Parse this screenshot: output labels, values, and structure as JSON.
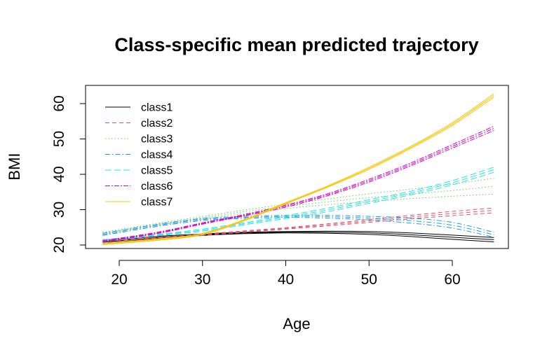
{
  "chart_data": {
    "type": "line",
    "title": "Class-specific mean predicted trajectory",
    "xlabel": "Age",
    "ylabel": "BMI",
    "xlim": [
      18,
      65
    ],
    "ylim": [
      20,
      62.5
    ],
    "xticks": [
      20,
      30,
      40,
      50,
      60
    ],
    "yticks": [
      20,
      30,
      40,
      50,
      60
    ],
    "legend_position": "top-left",
    "grid": false,
    "x": [
      18,
      25,
      30,
      35,
      40,
      45,
      50,
      55,
      60,
      65
    ],
    "series": [
      {
        "name": "class1",
        "color": "#000000",
        "dash": "solid",
        "values": [
          20.8,
          22.2,
          22.9,
          23.4,
          23.6,
          23.6,
          23.4,
          22.9,
          22.2,
          21.5
        ],
        "lower": [
          20.5,
          21.9,
          22.7,
          23.2,
          23.4,
          23.3,
          23.0,
          22.4,
          21.6,
          20.9
        ],
        "upper": [
          21.1,
          22.5,
          23.1,
          23.6,
          23.8,
          23.9,
          23.8,
          23.4,
          22.8,
          22.1
        ]
      },
      {
        "name": "class2",
        "color": "#DF536B",
        "dash": "6,4",
        "values": [
          21.3,
          22.1,
          22.9,
          23.8,
          24.7,
          25.7,
          26.8,
          27.9,
          28.9,
          29.8
        ],
        "lower": [
          21.1,
          21.9,
          22.7,
          23.6,
          24.5,
          25.4,
          26.4,
          27.4,
          28.3,
          29.1
        ],
        "upper": [
          21.5,
          22.3,
          23.1,
          24.0,
          24.9,
          26.0,
          27.2,
          28.4,
          29.5,
          30.5
        ]
      },
      {
        "name": "class3",
        "color": "#61D04F",
        "dash": "1.5,3",
        "values": [
          23.3,
          26.0,
          27.7,
          29.4,
          30.9,
          32.2,
          33.4,
          34.4,
          35.4,
          36.6
        ],
        "lower": [
          23.0,
          25.7,
          27.3,
          28.9,
          30.3,
          31.4,
          32.3,
          33.1,
          33.8,
          34.4
        ],
        "upper": [
          23.6,
          26.3,
          28.1,
          29.9,
          31.5,
          33.0,
          34.5,
          35.8,
          37.2,
          38.9
        ]
      },
      {
        "name": "class4",
        "color": "#2297E6",
        "dash": "7,3,1.5,3",
        "values": [
          23.0,
          25.7,
          27.2,
          27.8,
          28.1,
          28.0,
          27.6,
          26.9,
          25.6,
          22.9
        ],
        "lower": [
          22.7,
          25.4,
          26.9,
          27.5,
          27.8,
          27.6,
          27.1,
          26.2,
          24.8,
          22.2
        ],
        "upper": [
          23.3,
          26.0,
          27.5,
          28.1,
          28.4,
          28.4,
          28.1,
          27.6,
          26.4,
          23.6
        ]
      },
      {
        "name": "class5",
        "color": "#28E2E5",
        "dash": "9,4",
        "values": [
          21.3,
          22.9,
          24.2,
          26.0,
          27.9,
          29.9,
          32.3,
          34.7,
          37.6,
          41.3
        ],
        "lower": [
          21.1,
          22.7,
          23.9,
          25.7,
          27.5,
          29.4,
          31.8,
          34.2,
          37.0,
          40.6
        ],
        "upper": [
          21.5,
          23.1,
          24.5,
          26.3,
          28.3,
          30.4,
          32.8,
          35.2,
          38.2,
          42.0
        ]
      },
      {
        "name": "class6",
        "color": "#CD0BBC",
        "dash": "7,2,2,2",
        "values": [
          21.0,
          23.6,
          26.1,
          28.4,
          31.0,
          34.2,
          38.2,
          42.8,
          47.9,
          53.0
        ],
        "lower": [
          20.8,
          23.4,
          25.9,
          28.2,
          30.7,
          33.9,
          37.8,
          42.4,
          47.4,
          52.4
        ],
        "upper": [
          21.2,
          23.8,
          26.3,
          28.6,
          31.3,
          34.5,
          38.6,
          43.2,
          48.4,
          53.6
        ]
      },
      {
        "name": "class7",
        "color": "#F5C710",
        "dash": "solid",
        "values": [
          20.3,
          21.6,
          23.1,
          27.0,
          31.8,
          36.5,
          41.7,
          47.6,
          54.2,
          62.3
        ],
        "lower": [
          20.1,
          21.4,
          22.9,
          26.8,
          31.6,
          36.3,
          41.4,
          47.3,
          53.8,
          61.8
        ],
        "upper": [
          20.5,
          21.8,
          23.3,
          27.2,
          32.0,
          36.7,
          42.0,
          47.9,
          54.6,
          62.8
        ]
      }
    ]
  }
}
